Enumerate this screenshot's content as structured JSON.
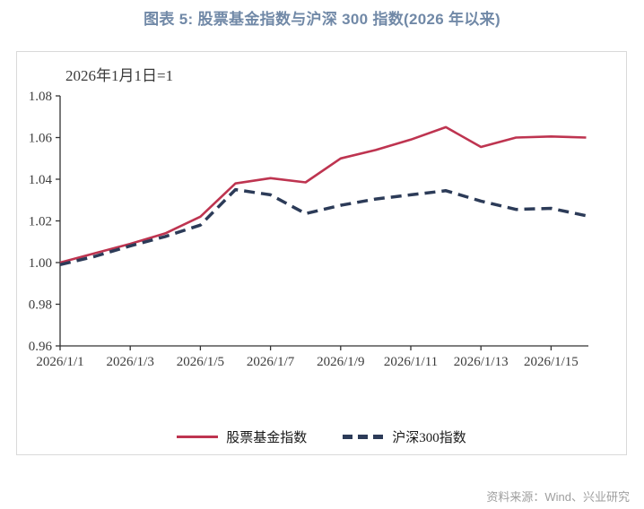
{
  "page": {
    "title": "图表 5: 股票基金指数与沪深 300 指数(2026 年以来)",
    "title_color": "#7189A7",
    "source": "资料来源：Wind、兴业研究",
    "axis_color": "#333333"
  },
  "chart_data": {
    "type": "line",
    "title": "图表 5: 股票基金指数与沪深 300 指数(2026 年以来)",
    "annotation": "2026年1月1日=1",
    "x": [
      "2026/1/1",
      "2026/1/2",
      "2026/1/3",
      "2026/1/4",
      "2026/1/5",
      "2026/1/6",
      "2026/1/7",
      "2026/1/8",
      "2026/1/9",
      "2026/1/10",
      "2026/1/11",
      "2026/1/12",
      "2026/1/13",
      "2026/1/14",
      "2026/1/15",
      "2026/1/16"
    ],
    "xtick_every": 2,
    "ylim": [
      0.96,
      1.08
    ],
    "yticks": [
      "0.96",
      "0.98",
      "1.00",
      "1.02",
      "1.04",
      "1.06",
      "1.08"
    ],
    "grid": false,
    "legend_position": "bottom",
    "series": [
      {
        "name": "股票基金指数",
        "style": "solid",
        "color": "#BE3450",
        "values": [
          1.0,
          1.0045,
          1.009,
          1.014,
          1.022,
          1.038,
          1.0405,
          1.0385,
          1.05,
          1.054,
          1.059,
          1.065,
          1.0555,
          1.06,
          1.0605,
          1.06
        ]
      },
      {
        "name": "沪深300指数",
        "style": "dashed",
        "color": "#2C3B58",
        "values": [
          0.999,
          1.003,
          1.008,
          1.0125,
          1.018,
          1.035,
          1.0325,
          1.0235,
          1.0275,
          1.0305,
          1.0325,
          1.0345,
          1.0295,
          1.0255,
          1.026,
          1.0225
        ]
      }
    ]
  }
}
